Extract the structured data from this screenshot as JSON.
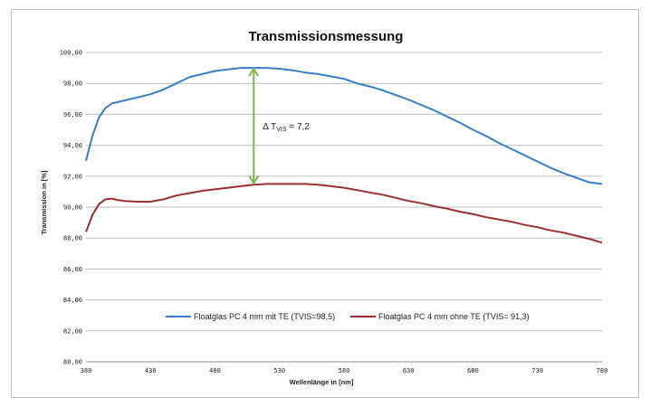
{
  "chart_data": {
    "type": "line",
    "title": "Transmissionsmessung",
    "xlabel": "Wellenlänge in [nm]",
    "ylabel": "Transmission in [%]",
    "xlim": [
      380,
      780
    ],
    "ylim": [
      80,
      100
    ],
    "x_ticks": [
      "380",
      "430",
      "480",
      "530",
      "580",
      "630",
      "680",
      "730",
      "780"
    ],
    "y_ticks": [
      "80,00",
      "82,00",
      "84,00",
      "86,00",
      "88,00",
      "90,00",
      "92,00",
      "94,00",
      "96,00",
      "98,00",
      "100,00"
    ],
    "grid": "horizontal",
    "legend_position": "bottom-center",
    "series": [
      {
        "name": "Floatglas PC 4 mm mit TE (TVIS=98,5)",
        "color": "#3a7dc9",
        "x": [
          380,
          385,
          390,
          395,
          400,
          410,
          420,
          430,
          440,
          450,
          460,
          470,
          480,
          490,
          500,
          510,
          520,
          530,
          540,
          550,
          560,
          570,
          580,
          590,
          600,
          610,
          620,
          630,
          640,
          650,
          660,
          670,
          680,
          690,
          700,
          710,
          720,
          730,
          740,
          750,
          760,
          770,
          780
        ],
        "y": [
          93.0,
          94.6,
          95.8,
          96.4,
          96.7,
          96.9,
          97.1,
          97.3,
          97.6,
          98.0,
          98.4,
          98.6,
          98.8,
          98.9,
          99.0,
          99.0,
          99.0,
          98.95,
          98.85,
          98.7,
          98.6,
          98.45,
          98.3,
          98.0,
          97.8,
          97.55,
          97.25,
          96.95,
          96.6,
          96.25,
          95.85,
          95.45,
          95.0,
          94.6,
          94.15,
          93.75,
          93.35,
          92.95,
          92.55,
          92.2,
          91.9,
          91.6,
          91.5
        ]
      },
      {
        "name": "Floatglas PC 4 mm ohne TE (TVIS= 91,3)",
        "color": "#9b2d30",
        "x": [
          380,
          385,
          390,
          395,
          400,
          405,
          410,
          420,
          430,
          440,
          450,
          460,
          470,
          480,
          490,
          500,
          510,
          520,
          530,
          540,
          550,
          560,
          570,
          580,
          590,
          600,
          610,
          620,
          630,
          640,
          650,
          660,
          670,
          680,
          690,
          700,
          710,
          720,
          730,
          740,
          750,
          760,
          770,
          780
        ],
        "y": [
          88.4,
          89.5,
          90.2,
          90.5,
          90.55,
          90.45,
          90.4,
          90.35,
          90.35,
          90.5,
          90.75,
          90.9,
          91.05,
          91.15,
          91.25,
          91.35,
          91.45,
          91.5,
          91.5,
          91.5,
          91.5,
          91.45,
          91.35,
          91.25,
          91.1,
          90.95,
          90.8,
          90.6,
          90.4,
          90.25,
          90.05,
          89.9,
          89.7,
          89.55,
          89.35,
          89.2,
          89.05,
          88.85,
          88.7,
          88.5,
          88.35,
          88.15,
          87.95,
          87.7
        ]
      }
    ],
    "annotation": {
      "arrow_x": 510,
      "arrow_from": 91.5,
      "arrow_to": 99.0,
      "color": "#7ab648",
      "delta_symbol": "Δ T",
      "subscript": "VIS",
      "value_text": " = 7,2"
    }
  }
}
